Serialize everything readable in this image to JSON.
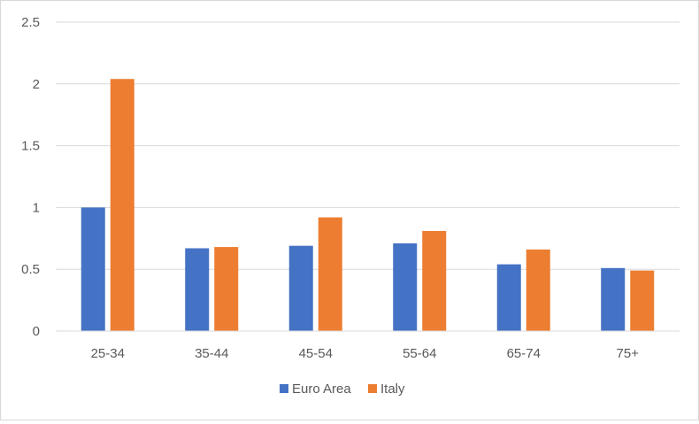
{
  "chart_data": {
    "type": "bar",
    "categories": [
      "25-34",
      "35-44",
      "45-54",
      "55-64",
      "65-74",
      "75+"
    ],
    "series": [
      {
        "name": "Euro Area",
        "color": "#4472c4",
        "values": [
          1.0,
          0.67,
          0.69,
          0.71,
          0.54,
          0.51
        ]
      },
      {
        "name": "Italy",
        "color": "#ed7d31",
        "values": [
          2.04,
          0.68,
          0.92,
          0.81,
          0.66,
          0.49
        ]
      }
    ],
    "title": "",
    "xlabel": "",
    "ylabel": "",
    "ylim": [
      0,
      2.5
    ],
    "yticks": [
      "0",
      "0.5",
      "1",
      "1.5",
      "2",
      "2.5"
    ],
    "grid": true,
    "legend_position": "bottom"
  }
}
